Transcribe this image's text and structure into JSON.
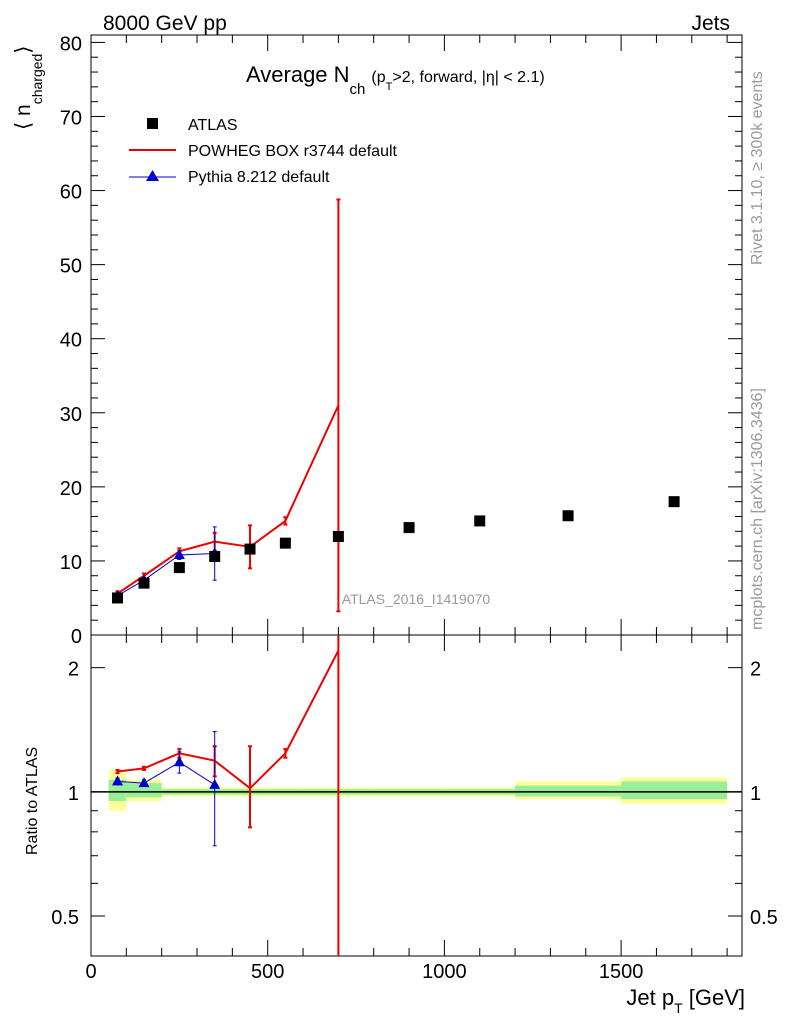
{
  "header": {
    "left": "8000 GeV pp",
    "right": "Jets"
  },
  "side_labels": {
    "rivet": "Rivet 3.1.10, ≥ 300k events",
    "mcplots": "mcplots.cern.ch [arXiv:1306.3436]"
  },
  "title": {
    "main": "Average N",
    "sub_ch": "ch",
    "paren_a": "(p",
    "sub_t": "T",
    "paren_b": ">2, forward, |η| < 2.1)"
  },
  "watermark": "ATLAS_2016_I1419070",
  "legend": [
    {
      "label": "ATLAS",
      "color": "#000000",
      "marker": "square"
    },
    {
      "label": "POWHEG BOX r3744 default",
      "color": "#ee0000",
      "marker": "line"
    },
    {
      "label": "Pythia 8.212 default",
      "color": "#0000cc",
      "marker": "triangle"
    }
  ],
  "axes": {
    "ylabel_main_a": "⟨ n",
    "ylabel_main_sub": "charged",
    "ylabel_main_b": "⟩",
    "ylabel_ratio": "Ratio to ATLAS",
    "xlabel_a": "Jet p",
    "xlabel_sub": "T",
    "xlabel_b": " [GeV]",
    "x_ticks": [
      "0",
      "500",
      "1000",
      "1500"
    ],
    "y_main_ticks": [
      "0",
      "10",
      "20",
      "30",
      "40",
      "50",
      "60",
      "70",
      "80"
    ],
    "y_ratio_ticks": [
      "0.5",
      "1",
      "2"
    ]
  },
  "chart_data": [
    {
      "type": "scatter",
      "title": "Average Nch (pT>2, forward, |η| < 2.1)",
      "xlabel": "Jet pT [GeV]",
      "ylabel": "⟨ n charged ⟩",
      "xlim": [
        0,
        1850
      ],
      "ylim": [
        0,
        81
      ],
      "grid": false,
      "legend_position": "top-left",
      "series": [
        {
          "name": "ATLAS",
          "color": "#000000",
          "x": [
            75,
            150,
            250,
            350,
            450,
            550,
            700,
            900,
            1100,
            1350,
            1650
          ],
          "x_low": [
            50,
            100,
            200,
            300,
            400,
            500,
            600,
            800,
            1000,
            1200,
            1500
          ],
          "x_high": [
            100,
            200,
            300,
            400,
            500,
            600,
            800,
            1000,
            1200,
            1500,
            1800
          ],
          "y": [
            5.0,
            7.0,
            9.1,
            10.6,
            11.6,
            12.4,
            13.3,
            14.5,
            15.4,
            16.1,
            18.0
          ]
        },
        {
          "name": "POWHEG BOX r3744 default",
          "color": "#ee0000",
          "x": [
            75,
            150,
            250,
            350,
            450,
            550,
            700
          ],
          "y": [
            5.6,
            8.0,
            11.3,
            12.6,
            11.9,
            15.4,
            31.0
          ],
          "yerr": [
            0.3,
            0.3,
            0.4,
            1.2,
            2.9,
            0.5,
            27.8
          ]
        },
        {
          "name": "Pythia 8.212 default",
          "color": "#0000cc",
          "x": [
            75,
            150,
            250,
            350
          ],
          "y": [
            5.3,
            7.4,
            10.8,
            11.0
          ],
          "yerr": [
            0.2,
            0.3,
            0.6,
            3.6
          ]
        }
      ]
    },
    {
      "type": "line",
      "title": "",
      "xlabel": "Jet pT [GeV]",
      "ylabel": "Ratio to ATLAS",
      "xlim": [
        0,
        1850
      ],
      "ylim": [
        0.4,
        2.4
      ],
      "log_y": true,
      "grid": false,
      "bands": [
        {
          "x_low": 50,
          "x_high": 100,
          "inner": [
            0.95,
            1.07
          ],
          "outer": [
            0.9,
            1.13
          ]
        },
        {
          "x_low": 100,
          "x_high": 200,
          "inner": [
            0.97,
            1.05
          ],
          "outer": [
            0.95,
            1.07
          ]
        },
        {
          "x_low": 200,
          "x_high": 300,
          "inner": [
            0.985,
            1.015
          ],
          "outer": [
            0.975,
            1.025
          ]
        },
        {
          "x_low": 300,
          "x_high": 400,
          "inner": [
            0.985,
            1.015
          ],
          "outer": [
            0.975,
            1.025
          ]
        },
        {
          "x_low": 400,
          "x_high": 500,
          "inner": [
            0.985,
            1.015
          ],
          "outer": [
            0.975,
            1.025
          ]
        },
        {
          "x_low": 500,
          "x_high": 600,
          "inner": [
            0.985,
            1.015
          ],
          "outer": [
            0.975,
            1.025
          ]
        },
        {
          "x_low": 600,
          "x_high": 800,
          "inner": [
            0.985,
            1.015
          ],
          "outer": [
            0.975,
            1.025
          ]
        },
        {
          "x_low": 800,
          "x_high": 1000,
          "inner": [
            0.985,
            1.015
          ],
          "outer": [
            0.975,
            1.025
          ]
        },
        {
          "x_low": 1000,
          "x_high": 1200,
          "inner": [
            0.985,
            1.015
          ],
          "outer": [
            0.975,
            1.025
          ]
        },
        {
          "x_low": 1200,
          "x_high": 1500,
          "inner": [
            0.975,
            1.035
          ],
          "outer": [
            0.96,
            1.06
          ]
        },
        {
          "x_low": 1500,
          "x_high": 1800,
          "inner": [
            0.96,
            1.06
          ],
          "outer": [
            0.935,
            1.085
          ]
        }
      ],
      "series": [
        {
          "name": "POWHEG BOX r3744 default",
          "color": "#ee0000",
          "x": [
            75,
            150,
            250,
            350,
            450,
            550,
            700
          ],
          "y": [
            1.12,
            1.14,
            1.24,
            1.19,
            1.02,
            1.24,
            2.2
          ],
          "yerr_low": [
            0.01,
            0.01,
            0.03,
            0.1,
            0.2,
            0.03,
            1.9
          ],
          "yerr_high": [
            0.01,
            0.01,
            0.03,
            0.1,
            0.27,
            0.03,
            0.2
          ]
        },
        {
          "name": "Pythia 8.212 default",
          "color": "#0000cc",
          "x": [
            75,
            150,
            250,
            350
          ],
          "y": [
            1.06,
            1.05,
            1.18,
            1.04
          ],
          "yerr_low": [
            0.02,
            0.02,
            0.07,
            0.3
          ],
          "yerr_high": [
            0.02,
            0.02,
            0.07,
            0.36
          ]
        }
      ]
    }
  ]
}
